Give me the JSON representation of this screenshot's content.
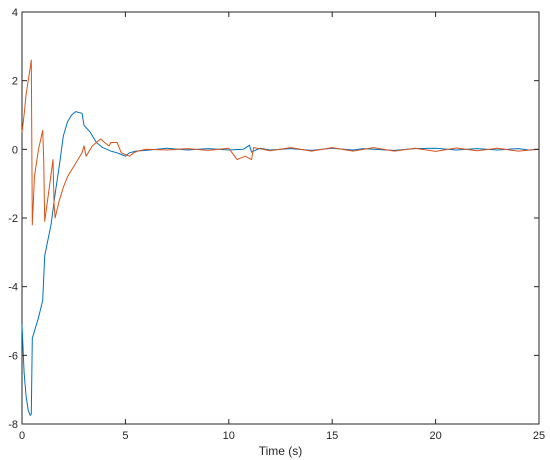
{
  "chart_data": {
    "type": "line",
    "title": "",
    "xlabel": "Time (s)",
    "ylabel": "",
    "xlim": [
      0,
      25
    ],
    "ylim": [
      -8,
      4
    ],
    "xticks": [
      0,
      5,
      10,
      15,
      20,
      25
    ],
    "yticks": [
      -8,
      -6,
      -4,
      -2,
      0,
      2,
      4
    ],
    "grid": false,
    "legend": "none",
    "series": [
      {
        "color": "#0072BD",
        "x": [
          0,
          0.1,
          0.2,
          0.3,
          0.4,
          0.45,
          0.5,
          0.55,
          0.8,
          1.0,
          1.1,
          1.4,
          1.6,
          1.8,
          2.0,
          2.2,
          2.4,
          2.6,
          2.9,
          3.0,
          3.3,
          3.6,
          3.9,
          4.1,
          4.3,
          4.6,
          4.8,
          5.0,
          5.2,
          5.5,
          6.0,
          7.0,
          8.0,
          9.0,
          10.0,
          10.7,
          11.0,
          11.1,
          11.5,
          12.0,
          13.0,
          14.0,
          15.0,
          16.0,
          16.5,
          17.0,
          18.0,
          19.0,
          20.0,
          21.0,
          22.0,
          23.0,
          24.0,
          24.5,
          25.0
        ],
        "y": [
          -5.1,
          -6.5,
          -7.2,
          -7.6,
          -7.75,
          -7.7,
          -5.5,
          -5.4,
          -4.9,
          -4.4,
          -3.1,
          -2.2,
          -1.3,
          -0.5,
          0.4,
          0.8,
          1.0,
          1.1,
          1.05,
          0.7,
          0.5,
          0.2,
          0.05,
          0.0,
          -0.05,
          -0.1,
          -0.15,
          -0.2,
          -0.1,
          -0.05,
          -0.03,
          0.03,
          -0.02,
          0.02,
          -0.02,
          0.0,
          0.12,
          -0.08,
          0.03,
          -0.02,
          0.02,
          -0.03,
          0.03,
          -0.02,
          0.02,
          0.0,
          -0.03,
          0.02,
          0.03,
          -0.02,
          0.02,
          -0.02,
          0.02,
          -0.02,
          0.0
        ]
      },
      {
        "color": "#D95319",
        "x": [
          0,
          0.1,
          0.2,
          0.3,
          0.4,
          0.45,
          0.5,
          0.55,
          0.6,
          0.8,
          1.0,
          1.05,
          1.1,
          1.3,
          1.5,
          1.55,
          1.6,
          1.8,
          2.0,
          2.2,
          2.4,
          2.6,
          2.8,
          2.9,
          3.0,
          3.1,
          3.2,
          3.4,
          3.6,
          3.8,
          4.0,
          4.2,
          4.3,
          4.6,
          4.8,
          5.0,
          5.2,
          5.4,
          5.6,
          6.0,
          7.0,
          8.0,
          9.0,
          10.0,
          10.4,
          10.8,
          11.1,
          11.2,
          12.0,
          13.0,
          14.0,
          15.0,
          16.0,
          17.0,
          18.0,
          19.0,
          20.0,
          21.0,
          22.0,
          23.0,
          24.0,
          25.0
        ],
        "y": [
          0.5,
          1.0,
          1.6,
          2.0,
          2.4,
          2.6,
          -2.2,
          -1.5,
          -0.8,
          0.0,
          0.55,
          -0.3,
          -2.1,
          -1.2,
          -0.3,
          -1.6,
          -2.0,
          -1.5,
          -1.1,
          -0.8,
          -0.6,
          -0.4,
          -0.2,
          -0.1,
          0.1,
          -0.2,
          -0.1,
          0.1,
          0.2,
          0.3,
          0.2,
          0.1,
          0.2,
          0.2,
          -0.1,
          -0.15,
          -0.2,
          -0.1,
          -0.05,
          0.0,
          -0.02,
          0.02,
          -0.03,
          0.03,
          -0.3,
          -0.2,
          -0.3,
          0.05,
          -0.04,
          0.05,
          -0.05,
          0.05,
          -0.05,
          0.05,
          -0.05,
          0.03,
          -0.06,
          0.04,
          -0.04,
          0.03,
          -0.05,
          0.0
        ]
      }
    ]
  }
}
